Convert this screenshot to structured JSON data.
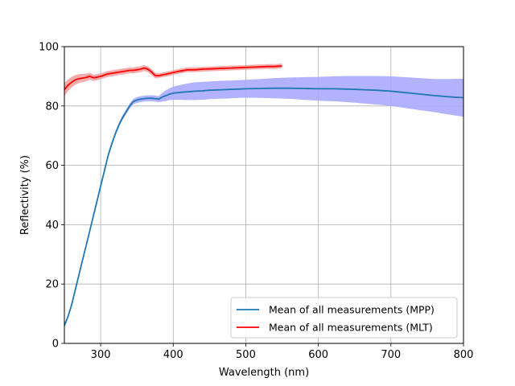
{
  "chart_data": {
    "type": "line",
    "title": "",
    "xlabel": "Wavelength (nm)",
    "ylabel": "Reflectivity (%)",
    "xlim": [
      250,
      800
    ],
    "ylim": [
      0,
      100
    ],
    "xticks": [
      300,
      400,
      500,
      600,
      700,
      800
    ],
    "xtick_labels": [
      "300",
      "400",
      "500",
      "600",
      "700",
      "800"
    ],
    "yticks": [
      0,
      20,
      40,
      60,
      80,
      100
    ],
    "ytick_labels": [
      "0",
      "20",
      "40",
      "60",
      "80",
      "100"
    ],
    "grid": true,
    "legend_position": "lower-right",
    "series": [
      {
        "name": "Mean of all measurements (MPP)",
        "color": "#1f77b4",
        "band_color": "#aaaaff",
        "x": [
          250,
          255,
          260,
          265,
          270,
          275,
          280,
          285,
          290,
          295,
          300,
          305,
          310,
          315,
          320,
          325,
          330,
          335,
          340,
          345,
          350,
          355,
          360,
          365,
          370,
          375,
          380,
          385,
          390,
          395,
          400,
          410,
          420,
          430,
          440,
          450,
          460,
          470,
          480,
          490,
          500,
          520,
          540,
          560,
          580,
          600,
          620,
          640,
          660,
          680,
          700,
          720,
          740,
          760,
          780,
          800
        ],
        "y": [
          6,
          9,
          13,
          18,
          23,
          28,
          33,
          38,
          43,
          48,
          53,
          58,
          63,
          67,
          70.5,
          73.5,
          76,
          78,
          80,
          81.5,
          82,
          82.3,
          82.5,
          82.6,
          82.6,
          82.5,
          82.3,
          83,
          83.5,
          84,
          84.3,
          84.6,
          84.8,
          85,
          85.1,
          85.3,
          85.4,
          85.5,
          85.6,
          85.7,
          85.8,
          85.9,
          86,
          86,
          85.9,
          85.8,
          85.8,
          85.7,
          85.5,
          85.3,
          85,
          84.5,
          84,
          83.5,
          83.1,
          82.8
        ],
        "band": [
          0.6,
          0.6,
          0.6,
          0.6,
          0.6,
          0.6,
          0.6,
          0.6,
          0.6,
          0.6,
          0.6,
          0.6,
          0.6,
          0.7,
          0.7,
          0.7,
          0.8,
          0.8,
          0.9,
          0.9,
          1.0,
          1.0,
          1.0,
          1.0,
          1.0,
          1.0,
          1.0,
          1.5,
          1.8,
          2.0,
          2.2,
          2.5,
          2.8,
          3.0,
          3.0,
          3.0,
          3.0,
          3.0,
          3.0,
          3.0,
          3.0,
          3.2,
          3.4,
          3.6,
          3.8,
          4.0,
          4.2,
          4.4,
          4.6,
          4.8,
          5.0,
          5.2,
          5.4,
          5.6,
          6.0,
          6.4
        ]
      },
      {
        "name": "Mean of all measurements (MLT)",
        "color": "#ff0000",
        "band_color": "#f4a3a3",
        "x": [
          250,
          255,
          260,
          265,
          270,
          275,
          280,
          285,
          290,
          295,
          300,
          305,
          310,
          315,
          320,
          325,
          330,
          335,
          340,
          345,
          350,
          355,
          360,
          365,
          370,
          375,
          380,
          385,
          390,
          395,
          400,
          410,
          420,
          430,
          440,
          450,
          460,
          470,
          480,
          490,
          500,
          510,
          520,
          530,
          540,
          550
        ],
        "y": [
          85.5,
          87,
          88,
          88.8,
          89.2,
          89.4,
          89.6,
          90,
          89.5,
          89.7,
          90,
          90.4,
          90.8,
          91,
          91.2,
          91.4,
          91.6,
          91.8,
          92,
          92,
          92.2,
          92.4,
          92.8,
          92.4,
          91.5,
          90.3,
          90.2,
          90.5,
          90.7,
          91,
          91.3,
          91.8,
          92.2,
          92.2,
          92.4,
          92.5,
          92.6,
          92.7,
          92.8,
          92.9,
          93,
          93.1,
          93.2,
          93.3,
          93.3,
          93.5
        ],
        "band": [
          2.2,
          2.0,
          1.8,
          1.6,
          1.5,
          1.4,
          1.3,
          1.2,
          1.1,
          1.0,
          1.0,
          1.0,
          1.0,
          1.0,
          1.0,
          1.0,
          1.0,
          1.0,
          1.0,
          1.0,
          1.0,
          1.0,
          1.0,
          1.0,
          1.0,
          1.0,
          0.8,
          0.8,
          0.8,
          0.8,
          0.8,
          0.8,
          0.8,
          0.8,
          0.8,
          0.8,
          0.8,
          0.8,
          0.8,
          0.8,
          0.8,
          0.8,
          0.8,
          0.8,
          0.8,
          0.8
        ]
      }
    ]
  }
}
